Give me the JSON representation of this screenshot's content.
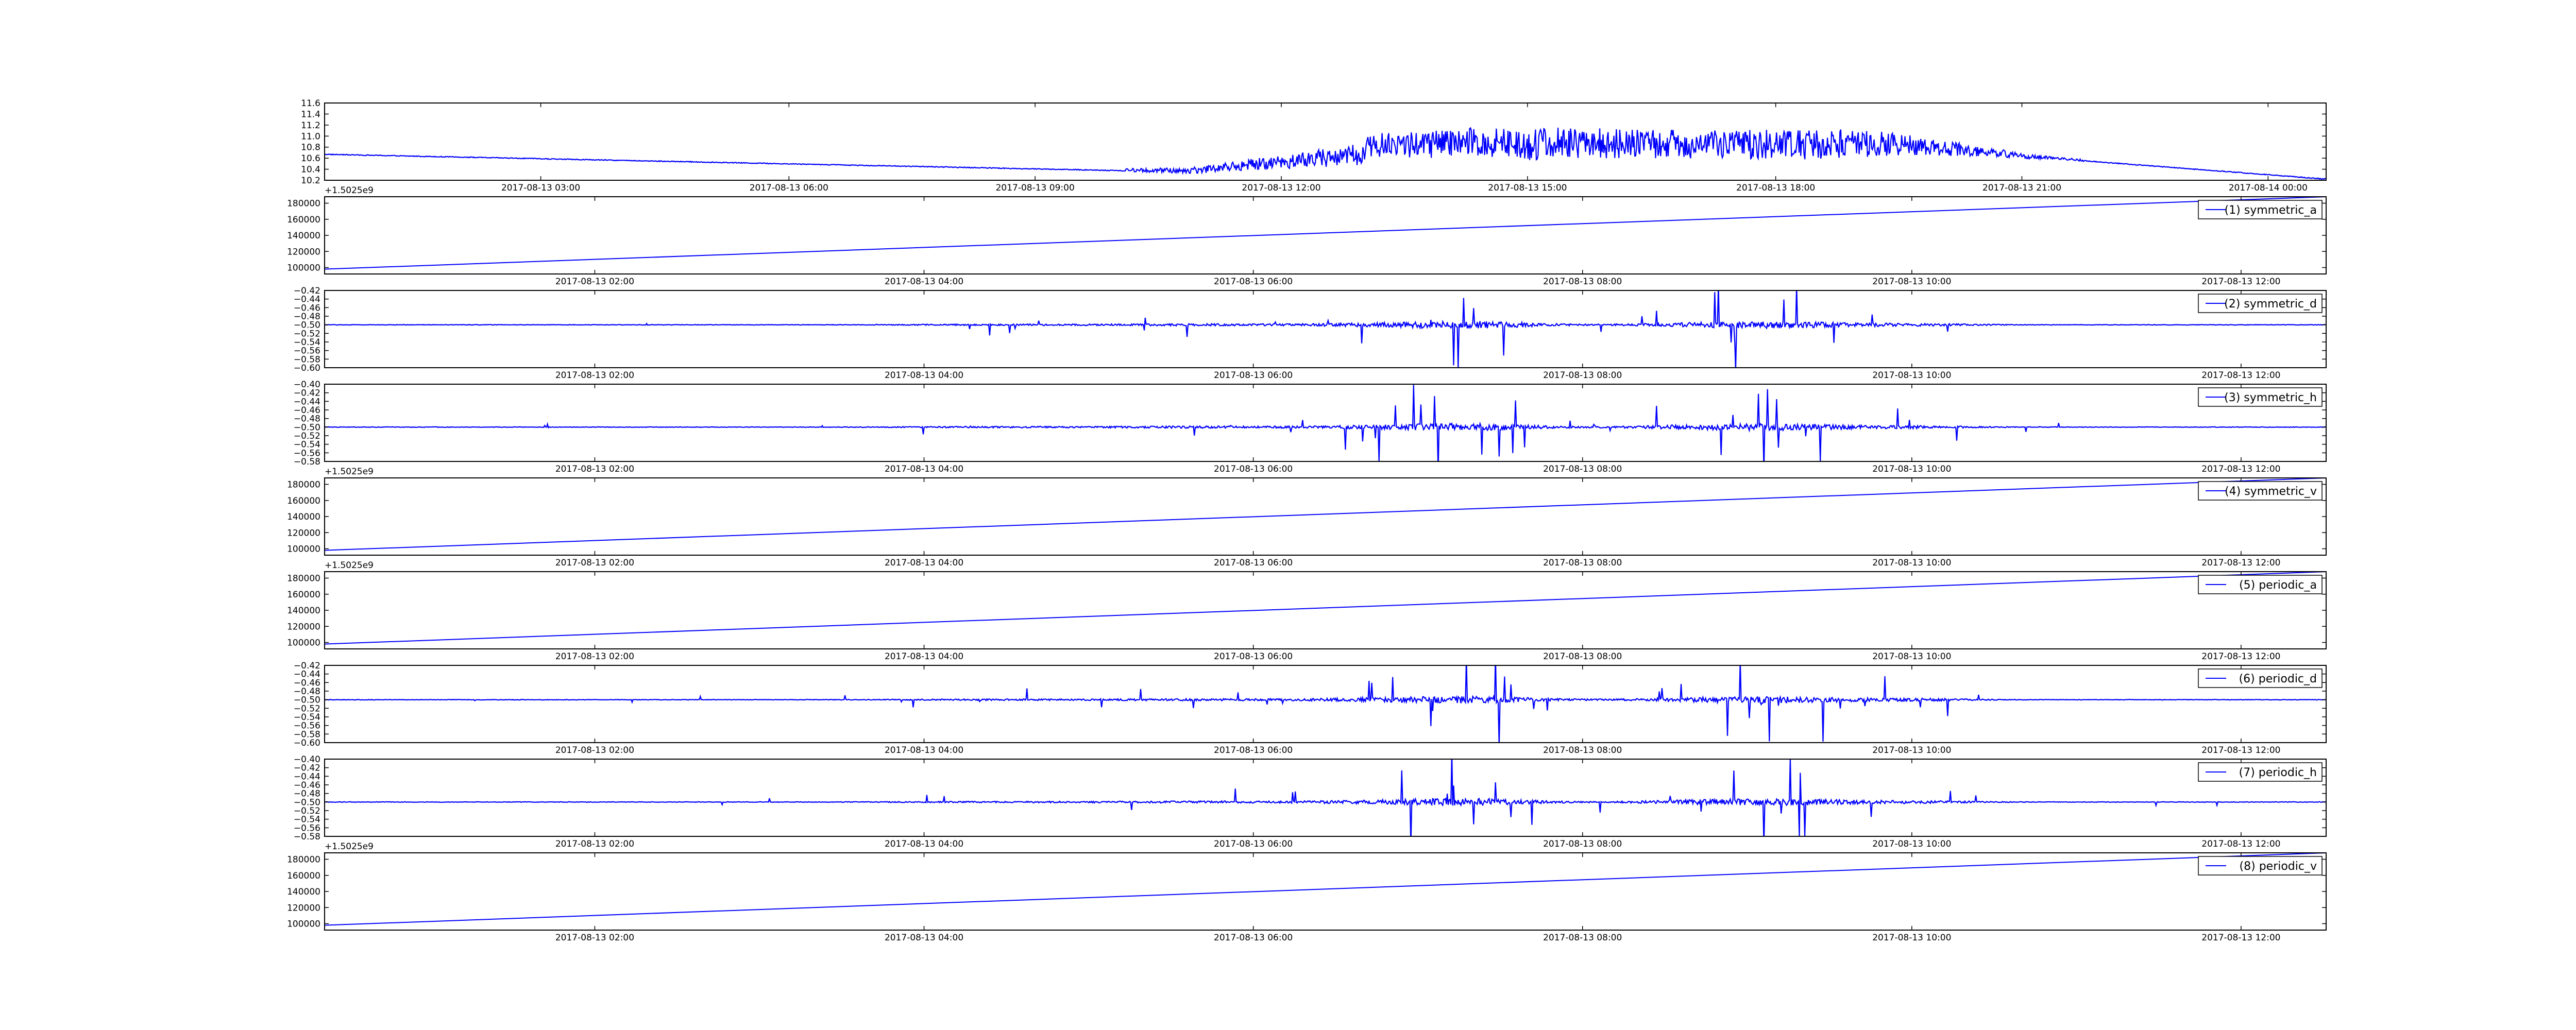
{
  "colors": {
    "line": "#0000ff",
    "legend_line": "#0000ff",
    "axes": "#000000",
    "background": "#ffffff"
  },
  "chart_data": [
    {
      "type": "line",
      "series": [
        {
          "values_range": [
            10.2,
            11.5
          ],
          "shape": "daily_profile"
        }
      ],
      "ylim": [
        10.2,
        11.6
      ],
      "yticks": [
        "10.2",
        "10.4",
        "10.6",
        "10.8",
        "11.0",
        "11.2",
        "11.4",
        "11.6"
      ],
      "xticks": [
        "2017-08-13 03:00",
        "2017-08-13 06:00",
        "2017-08-13 09:00",
        "2017-08-13 12:00",
        "2017-08-13 15:00",
        "2017-08-13 18:00",
        "2017-08-13 21:00",
        "2017-08-14 00:00"
      ],
      "offset_text": "+1.5025e9",
      "legend": null
    },
    {
      "type": "line",
      "series": [
        {
          "name": "(1) symmetric_a",
          "start": 98000,
          "end": 188000,
          "shape": "linear"
        }
      ],
      "ylim": [
        92000,
        188000
      ],
      "yticks": [
        "100000",
        "120000",
        "140000",
        "160000",
        "180000"
      ],
      "xticks": [
        "2017-08-13 02:00",
        "2017-08-13 04:00",
        "2017-08-13 06:00",
        "2017-08-13 08:00",
        "2017-08-13 10:00",
        "2017-08-13 12:00"
      ],
      "offset_text": "",
      "legend": "(1) symmetric_a"
    },
    {
      "type": "line",
      "series": [
        {
          "name": "(2) symmetric_d",
          "baseline": -0.5,
          "shape": "noise"
        }
      ],
      "ylim": [
        -0.6,
        -0.42
      ],
      "yticks": [
        "−0.42",
        "−0.44",
        "−0.46",
        "−0.48",
        "−0.50",
        "−0.52",
        "−0.54",
        "−0.56",
        "−0.58",
        "−0.60"
      ],
      "xticks": [
        "2017-08-13 02:00",
        "2017-08-13 04:00",
        "2017-08-13 06:00",
        "2017-08-13 08:00",
        "2017-08-13 10:00",
        "2017-08-13 12:00"
      ],
      "offset_text": "",
      "legend": "(2) symmetric_d"
    },
    {
      "type": "line",
      "series": [
        {
          "name": "(3) symmetric_h",
          "baseline": -0.5,
          "shape": "noise"
        }
      ],
      "ylim": [
        -0.58,
        -0.4
      ],
      "yticks": [
        "−0.40",
        "−0.42",
        "−0.44",
        "−0.46",
        "−0.48",
        "−0.50",
        "−0.52",
        "−0.54",
        "−0.56",
        "−0.58"
      ],
      "xticks": [
        "2017-08-13 02:00",
        "2017-08-13 04:00",
        "2017-08-13 06:00",
        "2017-08-13 08:00",
        "2017-08-13 10:00",
        "2017-08-13 12:00"
      ],
      "offset_text": "+1.5025e9",
      "legend": "(3) symmetric_h"
    },
    {
      "type": "line",
      "series": [
        {
          "name": "(4) symmetric_v",
          "start": 98000,
          "end": 188000,
          "shape": "linear"
        }
      ],
      "ylim": [
        92000,
        188000
      ],
      "yticks": [
        "100000",
        "120000",
        "140000",
        "160000",
        "180000"
      ],
      "xticks": [
        "2017-08-13 02:00",
        "2017-08-13 04:00",
        "2017-08-13 06:00",
        "2017-08-13 08:00",
        "2017-08-13 10:00",
        "2017-08-13 12:00"
      ],
      "offset_text": "+1.5025e9",
      "legend": "(4) symmetric_v"
    },
    {
      "type": "line",
      "series": [
        {
          "name": "(5) periodic_a",
          "start": 98000,
          "end": 188000,
          "shape": "linear"
        }
      ],
      "ylim": [
        92000,
        188000
      ],
      "yticks": [
        "100000",
        "120000",
        "140000",
        "160000",
        "180000"
      ],
      "xticks": [
        "2017-08-13 02:00",
        "2017-08-13 04:00",
        "2017-08-13 06:00",
        "2017-08-13 08:00",
        "2017-08-13 10:00",
        "2017-08-13 12:00"
      ],
      "offset_text": "",
      "legend": "(5) periodic_a"
    },
    {
      "type": "line",
      "series": [
        {
          "name": "(6) periodic_d",
          "baseline": -0.5,
          "shape": "noise"
        }
      ],
      "ylim": [
        -0.6,
        -0.42
      ],
      "yticks": [
        "−0.42",
        "−0.44",
        "−0.46",
        "−0.48",
        "−0.50",
        "−0.52",
        "−0.54",
        "−0.56",
        "−0.58",
        "−0.60"
      ],
      "xticks": [
        "2017-08-13 02:00",
        "2017-08-13 04:00",
        "2017-08-13 06:00",
        "2017-08-13 08:00",
        "2017-08-13 10:00",
        "2017-08-13 12:00"
      ],
      "offset_text": "",
      "legend": "(6) periodic_d"
    },
    {
      "type": "line",
      "series": [
        {
          "name": "(7) periodic_h",
          "baseline": -0.5,
          "shape": "noise"
        }
      ],
      "ylim": [
        -0.58,
        -0.4
      ],
      "yticks": [
        "−0.40",
        "−0.42",
        "−0.44",
        "−0.46",
        "−0.48",
        "−0.50",
        "−0.52",
        "−0.54",
        "−0.56",
        "−0.58"
      ],
      "xticks": [
        "2017-08-13 02:00",
        "2017-08-13 04:00",
        "2017-08-13 06:00",
        "2017-08-13 08:00",
        "2017-08-13 10:00",
        "2017-08-13 12:00"
      ],
      "offset_text": "+1.5025e9",
      "legend": "(7) periodic_h"
    },
    {
      "type": "line",
      "series": [
        {
          "name": "(8) periodic_v",
          "start": 98000,
          "end": 188000,
          "shape": "linear"
        }
      ],
      "ylim": [
        92000,
        188000
      ],
      "yticks": [
        "100000",
        "120000",
        "140000",
        "160000",
        "180000"
      ],
      "xticks": [
        "2017-08-13 02:00",
        "2017-08-13 04:00",
        "2017-08-13 06:00",
        "2017-08-13 08:00",
        "2017-08-13 10:00",
        "2017-08-13 12:00"
      ],
      "offset_text": "",
      "legend": "(8) periodic_v"
    }
  ]
}
